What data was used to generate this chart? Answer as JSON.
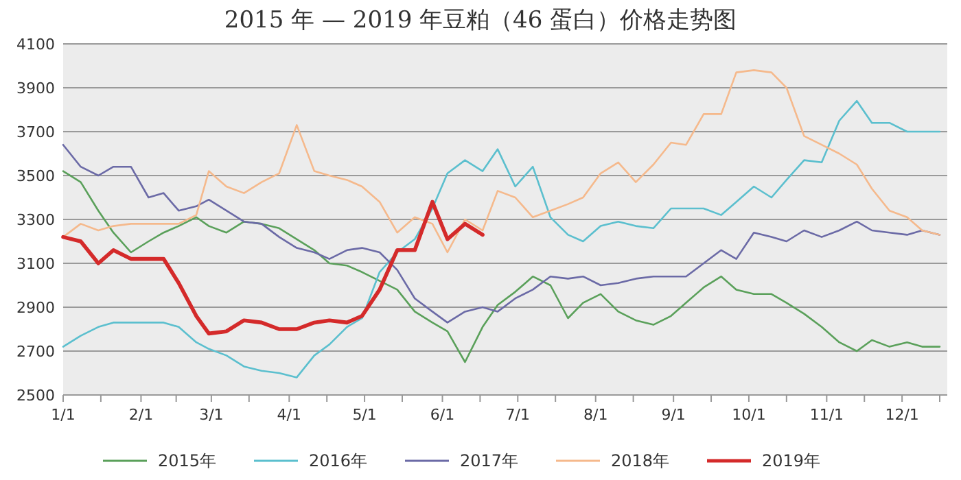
{
  "chart_data": {
    "type": "line",
    "title": "2015 年 — 2019 年豆粕（46 蛋白）价格走势图",
    "x": [
      "--01-01",
      "--01-08",
      "--01-15",
      "--01-21",
      "--01-28",
      "--02-04",
      "--02-10",
      "--02-16",
      "--02-23",
      "--02-28",
      "--03-07",
      "--03-14",
      "--03-21",
      "--03-28",
      "--04-04",
      "--04-11",
      "--04-17",
      "--04-24",
      "--04-30",
      "--05-07",
      "--05-14",
      "--05-21",
      "--05-28",
      "--06-03",
      "--06-10",
      "--06-17",
      "--06-23",
      "--06-30",
      "--07-07",
      "--07-14",
      "--07-21",
      "--07-27",
      "--08-03",
      "--08-10",
      "--08-17",
      "--08-24",
      "--08-31",
      "--09-06",
      "--09-13",
      "--09-20",
      "--09-26",
      "--10-03",
      "--10-10",
      "--10-16",
      "--10-23",
      "--10-30",
      "--11-06",
      "--11-13",
      "--11-19",
      "--11-26",
      "--12-03",
      "--12-09",
      "--12-16"
    ],
    "xlim": [
      "--01-01",
      "--12-19"
    ],
    "xticks": [
      {
        "value": "--01-01",
        "label": "1/1"
      },
      {
        "value": "--01-16",
        "label": null
      },
      {
        "value": "--02-01",
        "label": "2/1"
      },
      {
        "value": "--02-15",
        "label": null
      },
      {
        "value": "--03-01",
        "label": "3/1"
      },
      {
        "value": "--03-16",
        "label": null
      },
      {
        "value": "--04-01",
        "label": "4/1"
      },
      {
        "value": "--04-16",
        "label": null
      },
      {
        "value": "--05-01",
        "label": "5/1"
      },
      {
        "value": "--05-16",
        "label": null
      },
      {
        "value": "--06-01",
        "label": "6/1"
      },
      {
        "value": "--06-16",
        "label": null
      },
      {
        "value": "--07-01",
        "label": "7/1"
      },
      {
        "value": "--07-16",
        "label": null
      },
      {
        "value": "--08-01",
        "label": "8/1"
      },
      {
        "value": "--08-16",
        "label": null
      },
      {
        "value": "--09-01",
        "label": "9/1"
      },
      {
        "value": "--09-16",
        "label": null
      },
      {
        "value": "--10-01",
        "label": "10/1"
      },
      {
        "value": "--10-16",
        "label": null
      },
      {
        "value": "--11-01",
        "label": "11/1"
      },
      {
        "value": "--11-16",
        "label": null
      },
      {
        "value": "--12-01",
        "label": "12/1"
      },
      {
        "value": "--12-16",
        "label": null
      }
    ],
    "ylim": [
      2500,
      4100
    ],
    "yticks": [
      2500,
      2700,
      2900,
      3100,
      3300,
      3500,
      3700,
      3900,
      4100
    ],
    "grid": "y",
    "legend": "bottom",
    "line_style": "solid",
    "marker": "none",
    "series": [
      {
        "name": "2015年",
        "color": "#5aa05a",
        "values": [
          3520,
          3470,
          3340,
          3240,
          3150,
          3200,
          3240,
          3270,
          3310,
          3270,
          3240,
          3290,
          3280,
          3260,
          3210,
          3160,
          3100,
          3090,
          3060,
          3020,
          2980,
          2880,
          2830,
          2790,
          2650,
          2810,
          2910,
          2970,
          3040,
          3000,
          2850,
          2920,
          2960,
          2880,
          2840,
          2820,
          2860,
          2920,
          2990,
          3040,
          2980,
          2960,
          2960,
          2920,
          2870,
          2810,
          2740,
          2700,
          2750,
          2720,
          2740,
          2720,
          2720
        ]
      },
      {
        "name": "2016年",
        "color": "#5bbfce",
        "values": [
          2720,
          2770,
          2810,
          2830,
          2830,
          2830,
          2830,
          2810,
          2740,
          2710,
          2680,
          2630,
          2610,
          2600,
          2580,
          2680,
          2730,
          2810,
          2850,
          3060,
          3150,
          3210,
          3350,
          3510,
          3570,
          3520,
          3620,
          3450,
          3540,
          3310,
          3230,
          3200,
          3270,
          3290,
          3270,
          3260,
          3350,
          3350,
          3350,
          3320,
          3380,
          3450,
          3400,
          3480,
          3570,
          3560,
          3750,
          3840,
          3740,
          3740,
          3700,
          3700,
          3700
        ]
      },
      {
        "name": "2017年",
        "color": "#6b6aa6",
        "values": [
          3640,
          3540,
          3500,
          3540,
          3540,
          3400,
          3420,
          3340,
          3360,
          3390,
          3340,
          3290,
          3280,
          3220,
          3170,
          3150,
          3120,
          3160,
          3170,
          3150,
          3070,
          2940,
          2880,
          2830,
          2880,
          2900,
          2880,
          2940,
          2980,
          3040,
          3030,
          3040,
          3000,
          3010,
          3030,
          3040,
          3040,
          3040,
          3100,
          3160,
          3120,
          3240,
          3220,
          3200,
          3250,
          3220,
          3250,
          3290,
          3250,
          3240,
          3230,
          3250,
          3230
        ]
      },
      {
        "name": "2018年",
        "color": "#f5b98c",
        "values": [
          3220,
          3280,
          3250,
          3270,
          3280,
          3280,
          3280,
          3280,
          3320,
          3520,
          3450,
          3420,
          3470,
          3510,
          3730,
          3520,
          3500,
          3480,
          3450,
          3380,
          3240,
          3310,
          3280,
          3150,
          3300,
          3250,
          3430,
          3400,
          3310,
          3340,
          3370,
          3400,
          3510,
          3560,
          3470,
          3550,
          3650,
          3640,
          3780,
          3780,
          3970,
          3980,
          3970,
          3900,
          3680,
          3640,
          3600,
          3550,
          3440,
          3340,
          3310,
          3250,
          3230
        ]
      },
      {
        "name": "2019年",
        "color": "#d42a2a",
        "x": [
          "--01-01",
          "--01-08",
          "--01-15",
          "--01-21",
          "--01-28",
          "--02-04",
          "--02-10",
          "--02-16",
          "--02-23",
          "--02-28",
          "--03-07",
          "--03-14",
          "--03-21",
          "--03-28",
          "--04-04",
          "--04-11",
          "--04-17",
          "--04-24",
          "--04-30",
          "--05-07",
          "--05-14",
          "--05-21",
          "--05-28",
          "--06-03",
          "--06-10",
          "--06-17"
        ],
        "values": [
          3220,
          3200,
          3100,
          3160,
          3120,
          3120,
          3120,
          3010,
          2860,
          2780,
          2790,
          2840,
          2830,
          2800,
          2800,
          2830,
          2840,
          2830,
          2860,
          2980,
          3160,
          3160,
          3380,
          3210,
          3280,
          3230
        ]
      }
    ]
  }
}
